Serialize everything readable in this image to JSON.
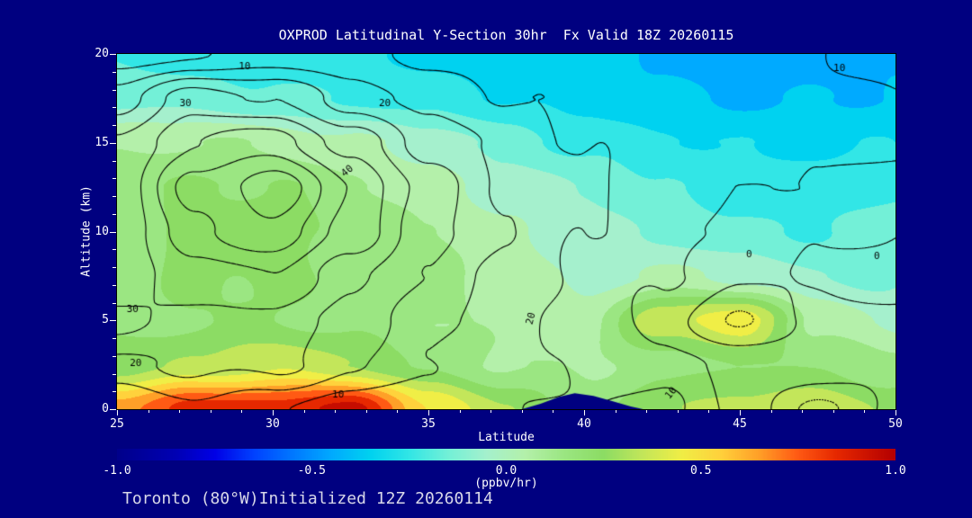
{
  "title": "OXPROD Latitudinal Y-Section 30hr  Fx Valid 18Z 20260115",
  "footer": "Toronto (80°W)Initialized 12Z 20260114",
  "colors": {
    "background": "#000080",
    "plot_border": "#000000",
    "contour_line": "#000000",
    "axis_text": "#ffffff",
    "title_text": "#ffffff",
    "footer_text": "#d8d8e8"
  },
  "chart_data": {
    "type": "heatmap",
    "overlay": "contour",
    "title": "OXPROD Latitudinal Y-Section 30hr  Fx Valid 18Z 20260115",
    "xlabel": "Latitude",
    "ylabel": "Altitude (km)",
    "xlim": [
      25,
      50
    ],
    "ylim": [
      0,
      20
    ],
    "x_ticks": [
      25,
      30,
      35,
      40,
      45,
      50
    ],
    "y_ticks": [
      0,
      5,
      10,
      15,
      20
    ],
    "minor_tick_step": {
      "x": 1,
      "y": 1
    },
    "shading": {
      "units": "ppbv/hr",
      "lat": [
        25,
        27.5,
        30,
        32.5,
        35,
        37.5,
        40,
        42.5,
        45,
        47.5,
        50
      ],
      "alt": [
        20,
        17.5,
        15,
        12.5,
        10,
        7.5,
        5,
        2.5,
        0
      ],
      "values": [
        [
          -0.22,
          -0.25,
          -0.28,
          -0.3,
          -0.32,
          -0.35,
          -0.38,
          -0.42,
          -0.48,
          -0.45,
          -0.42
        ],
        [
          -0.12,
          -0.15,
          -0.18,
          -0.2,
          -0.25,
          -0.3,
          -0.33,
          -0.38,
          -0.42,
          -0.4,
          -0.38
        ],
        [
          0.08,
          0.1,
          0.08,
          0.02,
          -0.05,
          -0.15,
          -0.22,
          -0.28,
          -0.32,
          -0.32,
          -0.3
        ],
        [
          0.15,
          0.22,
          0.2,
          0.12,
          0.06,
          -0.04,
          -0.12,
          -0.2,
          -0.25,
          -0.25,
          -0.22
        ],
        [
          0.16,
          0.24,
          0.26,
          0.18,
          0.12,
          0.02,
          -0.06,
          -0.12,
          -0.18,
          -0.2,
          -0.16
        ],
        [
          0.15,
          0.2,
          0.22,
          0.18,
          0.12,
          0.06,
          -0.02,
          0.02,
          -0.04,
          -0.1,
          -0.1
        ],
        [
          0.16,
          0.2,
          0.2,
          0.16,
          0.12,
          0.08,
          0.04,
          0.38,
          0.46,
          0.08,
          -0.04
        ],
        [
          0.25,
          0.32,
          0.38,
          0.3,
          0.18,
          0.1,
          0.08,
          0.15,
          0.22,
          0.18,
          0.12
        ],
        [
          0.65,
          0.85,
          0.85,
          0.95,
          0.5,
          0.3,
          0.15,
          0.3,
          0.32,
          0.38,
          0.28
        ]
      ]
    },
    "contours": {
      "levels": [
        -5,
        0,
        5,
        10,
        15,
        20,
        25,
        30,
        35,
        40,
        45
      ],
      "labeled_levels": [
        0,
        10,
        20,
        30,
        40
      ],
      "negative_style": "dotted",
      "lat": [
        25,
        27.5,
        30,
        32.5,
        35,
        37.5,
        40,
        42.5,
        45,
        47.5,
        50
      ],
      "alt": [
        20,
        17.5,
        15,
        12.5,
        10,
        7.5,
        5,
        2.5,
        0
      ],
      "values": [
        [
          7,
          10,
          12,
          11,
          9,
          8,
          7,
          7,
          8,
          10,
          12
        ],
        [
          18,
          27,
          25,
          18,
          13,
          10,
          9,
          8,
          8,
          9,
          10
        ],
        [
          25,
          35,
          38,
          28,
          18,
          13,
          10,
          8,
          7,
          6,
          6
        ],
        [
          27,
          42,
          48,
          35,
          23,
          15,
          11,
          8,
          6,
          4,
          3
        ],
        [
          26,
          39,
          44,
          33,
          22,
          15,
          10,
          7,
          4,
          1,
          0
        ],
        [
          27,
          32,
          35,
          27,
          19,
          13,
          9,
          5,
          1,
          -1,
          -2
        ],
        [
          31,
          29,
          29,
          23,
          17,
          12,
          8,
          3,
          -6,
          2,
          1
        ],
        [
          24,
          26,
          26,
          21,
          15,
          11,
          9,
          7,
          4,
          3,
          2
        ],
        [
          15,
          19,
          16,
          12,
          11,
          10,
          10,
          12,
          3,
          -6,
          1
        ]
      ],
      "labels": [
        {
          "value": 10,
          "lat": 29.1,
          "alt": 19.3,
          "rot": 0
        },
        {
          "value": 30,
          "lat": 27.2,
          "alt": 17.2,
          "rot": 0
        },
        {
          "value": 20,
          "lat": 33.6,
          "alt": 17.2,
          "rot": 0
        },
        {
          "value": 10,
          "lat": 48.2,
          "alt": 19.2,
          "rot": 0
        },
        {
          "value": 40,
          "lat": 32.4,
          "alt": 13.4,
          "rot": -40
        },
        {
          "value": 30,
          "lat": 25.5,
          "alt": 5.6,
          "rot": 0
        },
        {
          "value": 20,
          "lat": 25.6,
          "alt": 2.6,
          "rot": 0
        },
        {
          "value": 20,
          "lat": 38.3,
          "alt": 5.1,
          "rot": -75
        },
        {
          "value": 10,
          "lat": 32.1,
          "alt": 0.8,
          "rot": 0
        },
        {
          "value": 10,
          "lat": 42.8,
          "alt": 0.9,
          "rot": -50
        },
        {
          "value": 0,
          "lat": 45.3,
          "alt": 8.7,
          "rot": 0
        },
        {
          "value": 0,
          "lat": 49.4,
          "alt": 8.6,
          "rot": 0
        }
      ]
    },
    "terrain": [
      [
        38.0,
        0
      ],
      [
        38.6,
        0.3
      ],
      [
        39.2,
        0.7
      ],
      [
        39.7,
        0.9
      ],
      [
        40.3,
        0.75
      ],
      [
        40.9,
        0.45
      ],
      [
        41.5,
        0.15
      ],
      [
        41.9,
        0
      ]
    ],
    "colorbar": {
      "label": "(ppbv/hr)",
      "ticks": [
        "-1.0",
        "-0.5",
        "0.0",
        "0.5",
        "1.0"
      ],
      "min": -1,
      "max": 1,
      "band_width": 0.1,
      "stops": [
        [
          -1.0,
          "#00008b"
        ],
        [
          -0.85,
          "#0000b4"
        ],
        [
          -0.75,
          "#0000e6"
        ],
        [
          -0.65,
          "#0041ff"
        ],
        [
          -0.55,
          "#0078ff"
        ],
        [
          -0.45,
          "#00aaff"
        ],
        [
          -0.35,
          "#00d2f0"
        ],
        [
          -0.25,
          "#32e6e6"
        ],
        [
          -0.15,
          "#73f0d7"
        ],
        [
          -0.05,
          "#a5f0cd"
        ],
        [
          0.05,
          "#b4f0aa"
        ],
        [
          0.15,
          "#9be682"
        ],
        [
          0.25,
          "#8cdc64"
        ],
        [
          0.35,
          "#c3e65a"
        ],
        [
          0.45,
          "#f0ee46"
        ],
        [
          0.55,
          "#ffd23c"
        ],
        [
          0.65,
          "#ffa028"
        ],
        [
          0.75,
          "#ff5a14"
        ],
        [
          0.85,
          "#e62800"
        ],
        [
          1.0,
          "#b40000"
        ]
      ]
    }
  }
}
